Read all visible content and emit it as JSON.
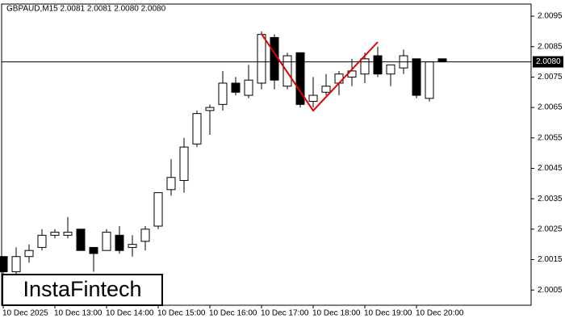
{
  "chart_data": {
    "type": "candlestick",
    "title": "GBPAUD,M15  2.0081 2.0081 2.0080 2.0080",
    "watermark": "InstaFintech",
    "categories": [
      "10 Dec 2025",
      null,
      null,
      null,
      "10 Dec 13:00",
      null,
      null,
      null,
      "10 Dec 14:00",
      null,
      null,
      null,
      "10 Dec 15:00",
      null,
      null,
      null,
      "10 Dec 16:00",
      null,
      null,
      null,
      "10 Dec 17:00",
      null,
      null,
      null,
      "10 Dec 18:00",
      null,
      null,
      null,
      "10 Dec 19:00",
      null,
      null,
      null,
      "10 Dec 20:00",
      null,
      null
    ],
    "open": [
      2.0016,
      2.0011,
      2.0016,
      2.0019,
      2.0023,
      2.0023,
      2.0025,
      2.0019,
      2.0018,
      2.0023,
      2.0019,
      2.0021,
      2.0026,
      2.0038,
      2.0041,
      2.0053,
      2.0064,
      2.0066,
      2.0073,
      2.0069,
      2.0073,
      2.0088,
      2.0072,
      2.0083,
      2.0067,
      2.007,
      2.0073,
      2.0075,
      2.0076,
      2.0082,
      2.0076,
      2.0078,
      2.0081,
      2.0068,
      2.0081
    ],
    "high": [
      2.0016,
      2.0019,
      2.002,
      2.0025,
      2.0025,
      2.0029,
      2.0025,
      2.0019,
      2.0025,
      2.0026,
      2.0023,
      2.0026,
      2.0037,
      2.0048,
      2.0055,
      2.0064,
      2.0066,
      2.0077,
      2.0075,
      2.0079,
      2.009,
      2.0089,
      2.0083,
      2.0083,
      2.0075,
      2.0076,
      2.0077,
      2.0081,
      2.0083,
      2.0085,
      2.0079,
      2.0084,
      2.0081,
      2.008,
      2.0081
    ],
    "low": [
      2.001,
      2.001,
      2.0014,
      2.0018,
      2.0022,
      2.0022,
      2.0018,
      2.0011,
      2.0018,
      2.0017,
      2.0016,
      2.0018,
      2.0025,
      2.0036,
      2.0037,
      2.0052,
      2.0056,
      2.0064,
      2.0069,
      2.0068,
      2.0071,
      2.0071,
      2.0071,
      2.0065,
      2.0065,
      2.0069,
      2.0069,
      2.0072,
      2.0073,
      2.0075,
      2.0072,
      2.0076,
      2.0068,
      2.0067,
      2.008
    ],
    "close": [
      2.0011,
      2.0016,
      2.0018,
      2.0023,
      2.0024,
      2.0024,
      2.0018,
      2.0017,
      2.0024,
      2.0018,
      2.002,
      2.0025,
      2.0037,
      2.0042,
      2.0052,
      2.0063,
      2.0065,
      2.0073,
      2.007,
      2.0074,
      2.0089,
      2.0074,
      2.0082,
      2.0066,
      2.0069,
      2.0072,
      2.0076,
      2.0077,
      2.0081,
      2.0076,
      2.0079,
      2.0082,
      2.0069,
      2.008,
      2.008
    ],
    "up_color": "#ffffff",
    "down_color": "#000000",
    "ylim": [
      2.0,
      2.0099
    ],
    "yticks": [
      2.0005,
      2.0015,
      2.0025,
      2.0035,
      2.0045,
      2.0055,
      2.0065,
      2.0075,
      2.0085,
      2.0095
    ],
    "last_price": {
      "value": 2.008,
      "label": "2.0080"
    }
  }
}
